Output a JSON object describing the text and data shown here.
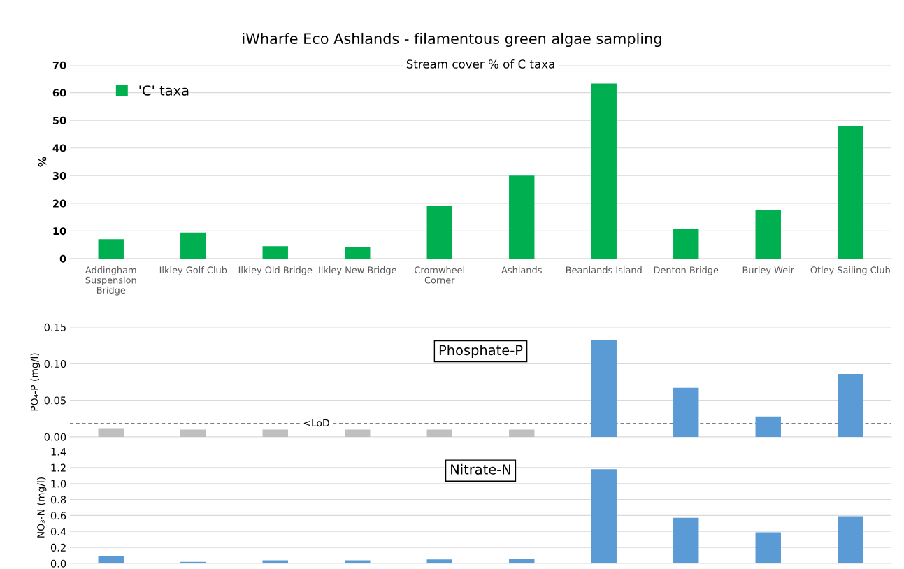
{
  "chart_data": [
    {
      "type": "bar",
      "title": "iWharfe Eco Ashlands - filamentous green algae sampling",
      "subtitle": "Stream cover % of C taxa",
      "ylabel": "%",
      "categories": [
        "Addingham\nSuspension\nBridge",
        "Ilkley Golf Club",
        "Ilkley Old Bridge",
        "Ilkley New Bridge",
        "Cromwheel\nCorner",
        "Ashlands",
        "Beanlands Island",
        "Denton Bridge",
        "Burley Weir",
        "Otley Sailing Club"
      ],
      "series": [
        {
          "name": "'C' taxa",
          "color": "#00b050",
          "values": [
            7,
            9.4,
            4.5,
            4.2,
            19,
            30,
            63.3,
            10.8,
            17.5,
            48
          ]
        }
      ],
      "ylim": [
        0,
        70
      ],
      "yticks": [
        0,
        10,
        20,
        30,
        40,
        50,
        60,
        70
      ],
      "grid": "y",
      "legend": "top left"
    },
    {
      "type": "bar",
      "title": "Phosphate-P",
      "ylabel": "PO₄-P (mg/l)",
      "categories": [
        null,
        null,
        null,
        null,
        null,
        null,
        null,
        null,
        null,
        null
      ],
      "values": [
        0.011,
        0.01,
        0.01,
        0.01,
        0.01,
        0.01,
        0.132,
        0.067,
        0.028,
        0.086
      ],
      "colors": [
        "#bfbfbf",
        "#bfbfbf",
        "#bfbfbf",
        "#bfbfbf",
        "#bfbfbf",
        "#bfbfbf",
        "#5b9bd5",
        "#5b9bd5",
        "#5b9bd5",
        "#5b9bd5"
      ],
      "ref_lines": [
        {
          "axis": "y",
          "value": 0.018,
          "label": "<LoD",
          "color": "#000000",
          "line_style": "dashed"
        }
      ],
      "ylim": [
        0,
        0.15
      ],
      "yticks": [
        {
          "value": 0,
          "label": "0.00"
        },
        0.05,
        {
          "value": 0.1,
          "label": "0.10"
        },
        0.15
      ],
      "grid": "y",
      "tick_labels": "y"
    },
    {
      "type": "bar",
      "title": "Nitrate-N",
      "ylabel": "NO₃-N (mg/l)",
      "categories": [
        null,
        null,
        null,
        null,
        null,
        null,
        null,
        null,
        null,
        null
      ],
      "values": [
        0.09,
        0.02,
        0.04,
        0.04,
        0.05,
        0.06,
        1.18,
        0.57,
        0.39,
        0.59
      ],
      "colors": [
        "#5b9bd5",
        "#5b9bd5",
        "#5b9bd5",
        "#5b9bd5",
        "#5b9bd5",
        "#5b9bd5",
        "#5b9bd5",
        "#5b9bd5",
        "#5b9bd5",
        "#5b9bd5"
      ],
      "ylim": [
        0,
        1.4
      ],
      "yticks": [
        {
          "value": 0,
          "label": "0.0"
        },
        0.2,
        0.4,
        0.6,
        0.8,
        {
          "value": 1.0,
          "label": "1.0"
        },
        1.2,
        1.4
      ],
      "grid": "y",
      "tick_labels": "y"
    }
  ]
}
